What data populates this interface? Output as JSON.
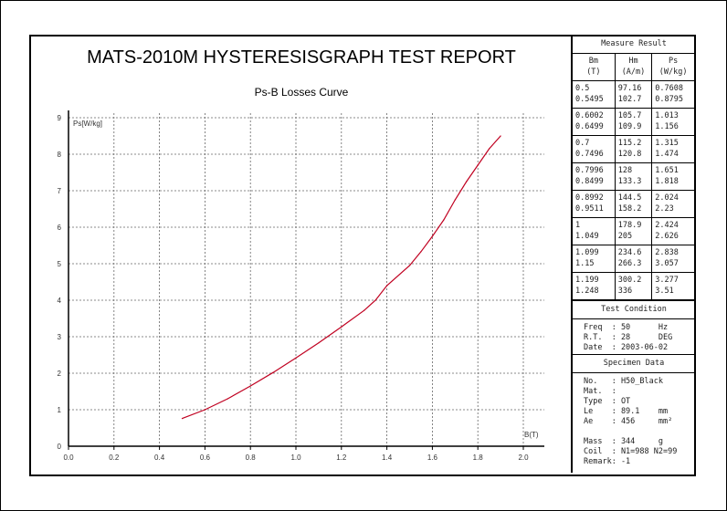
{
  "report": {
    "title": "MATS-2010M HYSTERESISGRAPH TEST REPORT"
  },
  "chart_data": {
    "type": "line",
    "title": "Ps-B Losses Curve",
    "xlabel": "B(T)",
    "ylabel": "Ps[W/kg]",
    "xlim": [
      0,
      2.0
    ],
    "ylim": [
      0,
      9
    ],
    "grid": true,
    "xticks": [
      "0.0",
      "0.2",
      "0.4",
      "0.6",
      "0.8",
      "1.0",
      "1.2",
      "1.4",
      "1.6",
      "1.8",
      "2.0"
    ],
    "yticks": [
      "0",
      "1",
      "2",
      "3",
      "4",
      "5",
      "6",
      "7",
      "8",
      "9"
    ],
    "color": "#c00020",
    "x": [
      0.5,
      0.6,
      0.7,
      0.8,
      0.9,
      1.0,
      1.1,
      1.2,
      1.3,
      1.35,
      1.4,
      1.5,
      1.55,
      1.6,
      1.65,
      1.7,
      1.75,
      1.8,
      1.85,
      1.9
    ],
    "y": [
      0.76,
      1.0,
      1.3,
      1.65,
      2.02,
      2.42,
      2.83,
      3.27,
      3.72,
      4.0,
      4.4,
      4.95,
      5.33,
      5.75,
      6.2,
      6.75,
      7.25,
      7.7,
      8.15,
      8.5
    ]
  },
  "measure": {
    "title": "Measure Result",
    "headers": [
      [
        "Bm",
        "(T)"
      ],
      [
        "Hm",
        "(A/m)"
      ],
      [
        "Ps",
        "(W/kg)"
      ]
    ],
    "rows": [
      [
        [
          "0.5",
          "0.5495"
        ],
        [
          "97.16",
          "102.7"
        ],
        [
          "0.7608",
          "0.8795"
        ]
      ],
      [
        [
          "0.6002",
          "0.6499"
        ],
        [
          "105.7",
          "109.9"
        ],
        [
          "1.013",
          "1.156"
        ]
      ],
      [
        [
          "0.7",
          "0.7496"
        ],
        [
          "115.2",
          "120.8"
        ],
        [
          "1.315",
          "1.474"
        ]
      ],
      [
        [
          "0.7996",
          "0.8499"
        ],
        [
          "128",
          "133.3"
        ],
        [
          "1.651",
          "1.818"
        ]
      ],
      [
        [
          "0.8992",
          "0.9511"
        ],
        [
          "144.5",
          "158.2"
        ],
        [
          "2.024",
          "2.23"
        ]
      ],
      [
        [
          "1",
          "1.049"
        ],
        [
          "178.9",
          "205"
        ],
        [
          "2.424",
          "2.626"
        ]
      ],
      [
        [
          "1.099",
          "1.15"
        ],
        [
          "234.6",
          "266.3"
        ],
        [
          "2.838",
          "3.057"
        ]
      ],
      [
        [
          "1.199",
          "1.248"
        ],
        [
          "300.2",
          "336"
        ],
        [
          "3.277",
          "3.51"
        ]
      ]
    ]
  },
  "condition": {
    "title": "Test Condition",
    "lines": [
      "Freq  : 50      Hz",
      "R.T.  : 28      DEG",
      "Date  : 2003-06-02"
    ]
  },
  "specimen": {
    "title": "Specimen Data",
    "lines": [
      "No.   : H50_Black",
      "Mat.  :",
      "Type  : OT",
      "Le    : 89.1    mm",
      "Ae    : 456     mm²",
      "",
      "Mass  : 344     g",
      "Coil  : N1=988 N2=99",
      "Remark: -1"
    ]
  }
}
